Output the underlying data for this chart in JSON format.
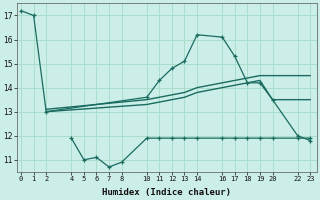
{
  "xlabel": "Humidex (Indice chaleur)",
  "background_color": "#cceee8",
  "grid_color": "#aaddcc",
  "line_color": "#1a6b60",
  "x_ticks": [
    0,
    1,
    2,
    4,
    5,
    6,
    7,
    8,
    10,
    11,
    12,
    13,
    14,
    16,
    17,
    18,
    19,
    20,
    22,
    23
  ],
  "y_ticks": [
    11,
    12,
    13,
    14,
    15,
    16,
    17
  ],
  "ylim": [
    10.5,
    17.5
  ],
  "xlim": [
    -0.3,
    23.5
  ],
  "series1_x": [
    0,
    1,
    2,
    10,
    11,
    12,
    13,
    14,
    16,
    17,
    18,
    19,
    20,
    22,
    23
  ],
  "series1_y": [
    17.2,
    17.0,
    13.0,
    13.6,
    14.3,
    14.8,
    15.1,
    16.2,
    16.1,
    15.3,
    14.2,
    14.2,
    13.5,
    12.0,
    11.8
  ],
  "series2_x": [
    4,
    5,
    6,
    7,
    8,
    10,
    11,
    12,
    13,
    14,
    16,
    17,
    18,
    19,
    20,
    22,
    23
  ],
  "series2_y": [
    11.9,
    11.0,
    11.1,
    10.7,
    10.9,
    11.9,
    11.9,
    11.9,
    11.9,
    11.9,
    11.9,
    11.9,
    11.9,
    11.9,
    11.9,
    11.9,
    11.9
  ],
  "series3_x": [
    2,
    10,
    11,
    12,
    13,
    14,
    16,
    17,
    18,
    19,
    20,
    23
  ],
  "series3_y": [
    13.0,
    13.3,
    13.4,
    13.5,
    13.6,
    13.8,
    14.0,
    14.1,
    14.2,
    14.3,
    13.5,
    13.5
  ],
  "series4_x": [
    2,
    10,
    11,
    12,
    13,
    14,
    16,
    17,
    18,
    19,
    20,
    23
  ],
  "series4_y": [
    13.1,
    13.5,
    13.6,
    13.7,
    13.8,
    14.0,
    14.2,
    14.3,
    14.4,
    14.5,
    14.5,
    14.5
  ]
}
